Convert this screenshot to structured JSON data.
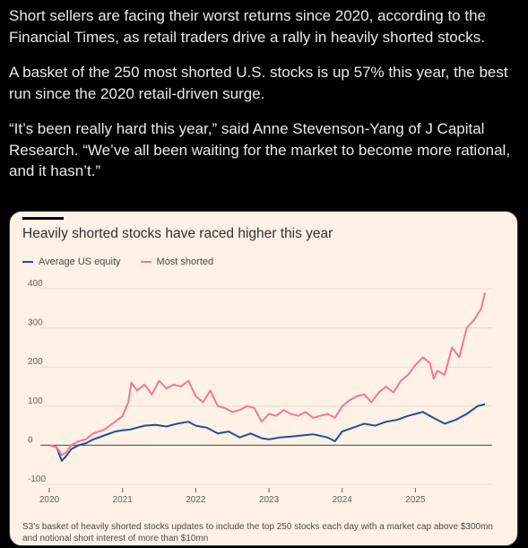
{
  "tweet": {
    "paragraphs": [
      "Short sellers are facing their worst returns since 2020, according to the Financial Times, as retail traders drive a rally in heavily shorted stocks.",
      "A basket of the 250 most shorted U.S. stocks is up 57% this year, the best run since the 2020 retail-driven surge.",
      "“It’s been really hard this year,” said Anne Stevenson-Yang of J Capital Research. “We’ve all been waiting for the market to become more rational, and it hasn’t.”"
    ]
  },
  "chart": {
    "footnote": "S3's basket of heavily shorted stocks updates to include the top 250 stocks each day with a market cap above $300mn and notional short interest of more than $10mn"
  },
  "colors": {
    "avg_us_equity": "#1f4f9c",
    "most_shorted": "#f0779a",
    "background": "#fff1e5"
  },
  "chart_data": {
    "type": "line",
    "title": "Heavily shorted stocks have raced higher this year",
    "xlabel": "",
    "ylabel": "",
    "ylim": [
      -100,
      400
    ],
    "xlim": [
      2020.0,
      2025.95
    ],
    "y_ticks": [
      -100,
      0,
      100,
      200,
      300,
      400
    ],
    "y_tick_labels": [
      "-100",
      "0",
      "100",
      "200",
      "300",
      "400"
    ],
    "x_ticks": [
      2020,
      2021,
      2022,
      2023,
      2024,
      2025
    ],
    "x_tick_labels": [
      "2020",
      "2021",
      "2022",
      "2023",
      "2024",
      "2025"
    ],
    "grid": true,
    "legend_position": "top-left",
    "series": [
      {
        "name": "Average US equity",
        "color": "#1f4f9c",
        "x": [
          2020.0,
          2020.1,
          2020.17,
          2020.22,
          2020.3,
          2020.4,
          2020.5,
          2020.6,
          2020.75,
          2020.9,
          2021.0,
          2021.1,
          2021.2,
          2021.3,
          2021.45,
          2021.6,
          2021.75,
          2021.9,
          2022.0,
          2022.15,
          2022.3,
          2022.45,
          2022.6,
          2022.75,
          2022.9,
          2023.0,
          2023.15,
          2023.3,
          2023.45,
          2023.6,
          2023.8,
          2023.9,
          2024.0,
          2024.15,
          2024.3,
          2024.45,
          2024.6,
          2024.75,
          2024.9,
          2025.0,
          2025.1,
          2025.2,
          2025.3,
          2025.4,
          2025.55,
          2025.7,
          2025.85,
          2025.95
        ],
        "values": [
          0,
          -5,
          -40,
          -30,
          -10,
          0,
          5,
          15,
          25,
          35,
          38,
          40,
          45,
          50,
          52,
          48,
          55,
          60,
          50,
          45,
          30,
          35,
          20,
          30,
          18,
          15,
          20,
          22,
          25,
          28,
          20,
          10,
          35,
          45,
          55,
          50,
          60,
          65,
          75,
          80,
          85,
          75,
          65,
          55,
          65,
          80,
          100,
          105
        ]
      },
      {
        "name": "Most shorted",
        "color": "#f0779a",
        "x": [
          2020.0,
          2020.1,
          2020.17,
          2020.22,
          2020.3,
          2020.4,
          2020.5,
          2020.6,
          2020.75,
          2020.9,
          2021.0,
          2021.08,
          2021.12,
          2021.2,
          2021.3,
          2021.4,
          2021.5,
          2021.6,
          2021.7,
          2021.8,
          2021.9,
          2022.0,
          2022.1,
          2022.2,
          2022.3,
          2022.4,
          2022.5,
          2022.6,
          2022.7,
          2022.8,
          2022.9,
          2023.0,
          2023.1,
          2023.2,
          2023.3,
          2023.4,
          2023.5,
          2023.6,
          2023.7,
          2023.8,
          2023.9,
          2024.0,
          2024.1,
          2024.2,
          2024.3,
          2024.4,
          2024.5,
          2024.6,
          2024.7,
          2024.8,
          2024.9,
          2025.0,
          2025.1,
          2025.2,
          2025.25,
          2025.3,
          2025.4,
          2025.5,
          2025.6,
          2025.7,
          2025.8,
          2025.9,
          2025.95
        ],
        "values": [
          0,
          -5,
          -25,
          -20,
          0,
          10,
          15,
          30,
          40,
          60,
          75,
          110,
          160,
          140,
          155,
          130,
          165,
          145,
          155,
          150,
          165,
          125,
          110,
          140,
          100,
          95,
          85,
          90,
          100,
          95,
          60,
          80,
          75,
          90,
          80,
          75,
          85,
          70,
          75,
          80,
          70,
          100,
          115,
          125,
          130,
          110,
          135,
          150,
          135,
          165,
          180,
          205,
          225,
          210,
          170,
          190,
          180,
          250,
          225,
          300,
          320,
          350,
          390
        ]
      }
    ]
  }
}
